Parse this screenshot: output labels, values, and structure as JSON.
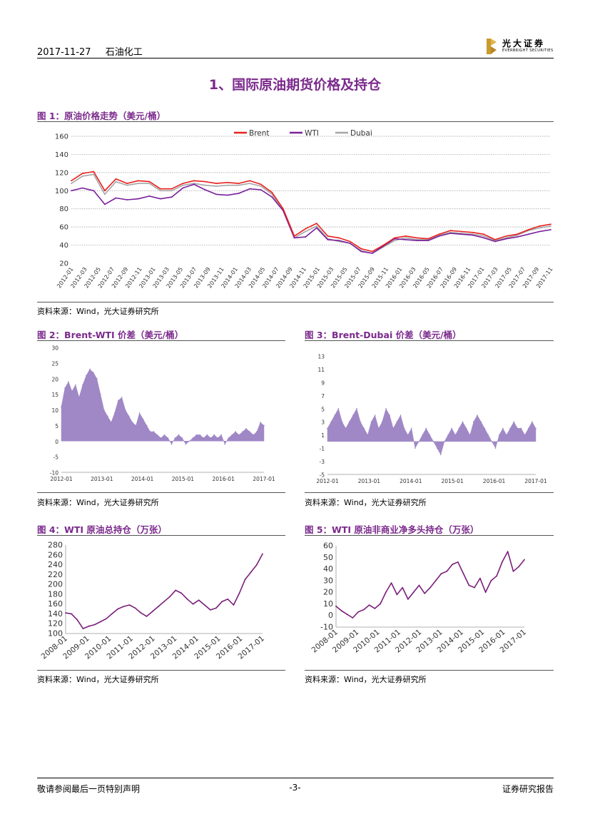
{
  "header": {
    "date": "2017-11-27",
    "industry": "石油化工",
    "logo_cn": "光大证券",
    "logo_en": "EVERBRIGHT SECURITIES",
    "brand_color": "#c99a2e"
  },
  "section_title": "1、国际原油期货价格及持仓",
  "figures": [
    {
      "title": "图 1：原油价格走势（美元/桶）",
      "source": "资料来源：Wind，光大证券研究所"
    },
    {
      "title": "图 2：Brent-WTI 价差（美元/桶）",
      "source": "资料来源：Wind，光大证券研究所"
    },
    {
      "title": "图 3：Brent-Dubai 价差（美元/桶）",
      "source": "资料来源：Wind，光大证券研究所"
    },
    {
      "title": "图 4：WTI 原油总持仓（万张）",
      "source": "资料来源：Wind，光大证券研究所"
    },
    {
      "title": "图 5：WTI 原油非商业净多头持仓（万张）",
      "source": "资料来源：Wind，光大证券研究所"
    }
  ],
  "footer": {
    "left": "敬请参阅最后一页特别声明",
    "center": "-3-",
    "right": "证券研究报告"
  },
  "chart_data": [
    {
      "type": "line",
      "title": "图 1：原油价格走势（美元/桶）",
      "ylim": [
        20,
        160
      ],
      "yticks": [
        20,
        40,
        60,
        80,
        100,
        120,
        140,
        160
      ],
      "grid": true,
      "legend": "top-center",
      "x_labels": [
        "2012-01",
        "2012-03",
        "2012-05",
        "2012-07",
        "2012-09",
        "2012-11",
        "2013-01",
        "2013-03",
        "2013-05",
        "2013-07",
        "2013-09",
        "2013-11",
        "2014-01",
        "2014-03",
        "2014-05",
        "2014-07",
        "2014-09",
        "2014-11",
        "2015-01",
        "2015-03",
        "2015-05",
        "2015-07",
        "2015-09",
        "2015-11",
        "2016-01",
        "2016-03",
        "2016-05",
        "2016-07",
        "2016-09",
        "2016-11",
        "2017-01",
        "2017-03",
        "2017-05",
        "2017-07",
        "2017-09",
        "2017-11"
      ],
      "series": [
        {
          "name": "Brent",
          "color": "#e8201c",
          "values": [
            111,
            119,
            121,
            100,
            113,
            108,
            111,
            110,
            102,
            102,
            108,
            111,
            110,
            108,
            109,
            108,
            111,
            107,
            98,
            80,
            50,
            58,
            64,
            50,
            48,
            44,
            36,
            33,
            40,
            48,
            50,
            48,
            47,
            52,
            56,
            55,
            54,
            52,
            46,
            50,
            52,
            57,
            61,
            63
          ]
        },
        {
          "name": "WTI",
          "color": "#7a1f9c",
          "values": [
            100,
            103,
            100,
            85,
            92,
            90,
            91,
            94,
            91,
            93,
            103,
            107,
            101,
            96,
            95,
            97,
            102,
            101,
            93,
            78,
            48,
            49,
            59,
            46,
            45,
            42,
            33,
            31,
            39,
            47,
            46,
            45,
            45,
            50,
            53,
            52,
            51,
            48,
            44,
            47,
            49,
            52,
            55,
            57
          ]
        },
        {
          "name": "Dubai",
          "color": "#a6a6a6",
          "values": [
            108,
            116,
            118,
            96,
            110,
            106,
            108,
            108,
            100,
            100,
            106,
            108,
            106,
            105,
            106,
            106,
            108,
            105,
            96,
            78,
            48,
            55,
            61,
            47,
            44,
            42,
            34,
            31,
            38,
            45,
            48,
            46,
            46,
            51,
            54,
            53,
            52,
            50,
            45,
            48,
            51,
            56,
            59,
            61
          ]
        }
      ]
    },
    {
      "type": "area",
      "title": "图 2：Brent-WTI 价差（美元/桶）",
      "ylim": [
        -10,
        30
      ],
      "yticks": [
        -10,
        -5,
        0,
        5,
        10,
        15,
        20,
        25,
        30
      ],
      "x_labels": [
        "2012-01",
        "2013-01",
        "2014-01",
        "2015-01",
        "2016-01",
        "2017-01"
      ],
      "color": "#9b82c4",
      "values": [
        11,
        17,
        19,
        16,
        18,
        14,
        18,
        21,
        23,
        22,
        20,
        15,
        10,
        8,
        6,
        9,
        13,
        14,
        10,
        8,
        6,
        5,
        9,
        7,
        5,
        3,
        3,
        2,
        1,
        2,
        1,
        -1,
        1,
        2,
        1,
        -1,
        0,
        1,
        2,
        2,
        1,
        2,
        1,
        2,
        1,
        2,
        -1,
        1,
        2,
        3,
        2,
        3,
        4,
        3,
        2,
        3,
        6,
        5
      ]
    },
    {
      "type": "area",
      "title": "图 3：Brent-Dubai 价差（美元/桶）",
      "ylim": [
        -5,
        13
      ],
      "yticks": [
        -5,
        -3,
        -1,
        1,
        3,
        5,
        7,
        9,
        11,
        13
      ],
      "x_labels": [
        "2012-01",
        "2013-01",
        "2014-01",
        "2015-01",
        "2016-01",
        "2017-01"
      ],
      "color": "#9b82c4",
      "values": [
        2,
        3,
        4,
        5,
        3,
        2,
        3,
        4,
        5,
        3,
        2,
        1,
        3,
        4,
        2,
        3,
        5,
        4,
        2,
        3,
        4,
        2,
        1,
        2,
        -1,
        0,
        1,
        2,
        1,
        0,
        -1,
        -2,
        0,
        1,
        2,
        1,
        2,
        3,
        2,
        1,
        3,
        4,
        3,
        2,
        1,
        0,
        -1,
        1,
        2,
        1,
        2,
        3,
        2,
        2,
        1,
        2,
        3,
        2
      ]
    },
    {
      "type": "line",
      "title": "图 4：WTI 原油总持仓（万张）",
      "ylim": [
        100,
        280
      ],
      "yticks": [
        100,
        120,
        140,
        160,
        180,
        200,
        220,
        240,
        260,
        280
      ],
      "x_labels": [
        "2008-01",
        "2009-01",
        "2010-01",
        "2011-01",
        "2012-01",
        "2013-01",
        "2014-01",
        "2015-01",
        "2016-01",
        "2017-01"
      ],
      "color": "#7a1f7a",
      "values": [
        142,
        140,
        128,
        110,
        115,
        118,
        124,
        130,
        140,
        150,
        155,
        158,
        152,
        142,
        135,
        145,
        155,
        165,
        175,
        188,
        182,
        170,
        160,
        168,
        158,
        148,
        152,
        165,
        170,
        158,
        182,
        210,
        225,
        240,
        262
      ]
    },
    {
      "type": "line",
      "title": "图 5：WTI 原油非商业净多头持仓（万张）",
      "ylim": [
        -10,
        60
      ],
      "yticks": [
        -10,
        0,
        10,
        20,
        30,
        40,
        50,
        60
      ],
      "x_labels": [
        "2008-01",
        "2009-01",
        "2010-01",
        "2011-01",
        "2012-01",
        "2013-01",
        "2014-01",
        "2015-01",
        "2016-01",
        "2017-01"
      ],
      "color": "#7a1f7a",
      "values": [
        8,
        4,
        1,
        -2,
        3,
        5,
        9,
        6,
        10,
        20,
        28,
        18,
        24,
        14,
        20,
        26,
        19,
        24,
        30,
        36,
        38,
        44,
        46,
        36,
        26,
        24,
        32,
        20,
        30,
        34,
        46,
        55,
        38,
        42,
        48
      ]
    }
  ]
}
